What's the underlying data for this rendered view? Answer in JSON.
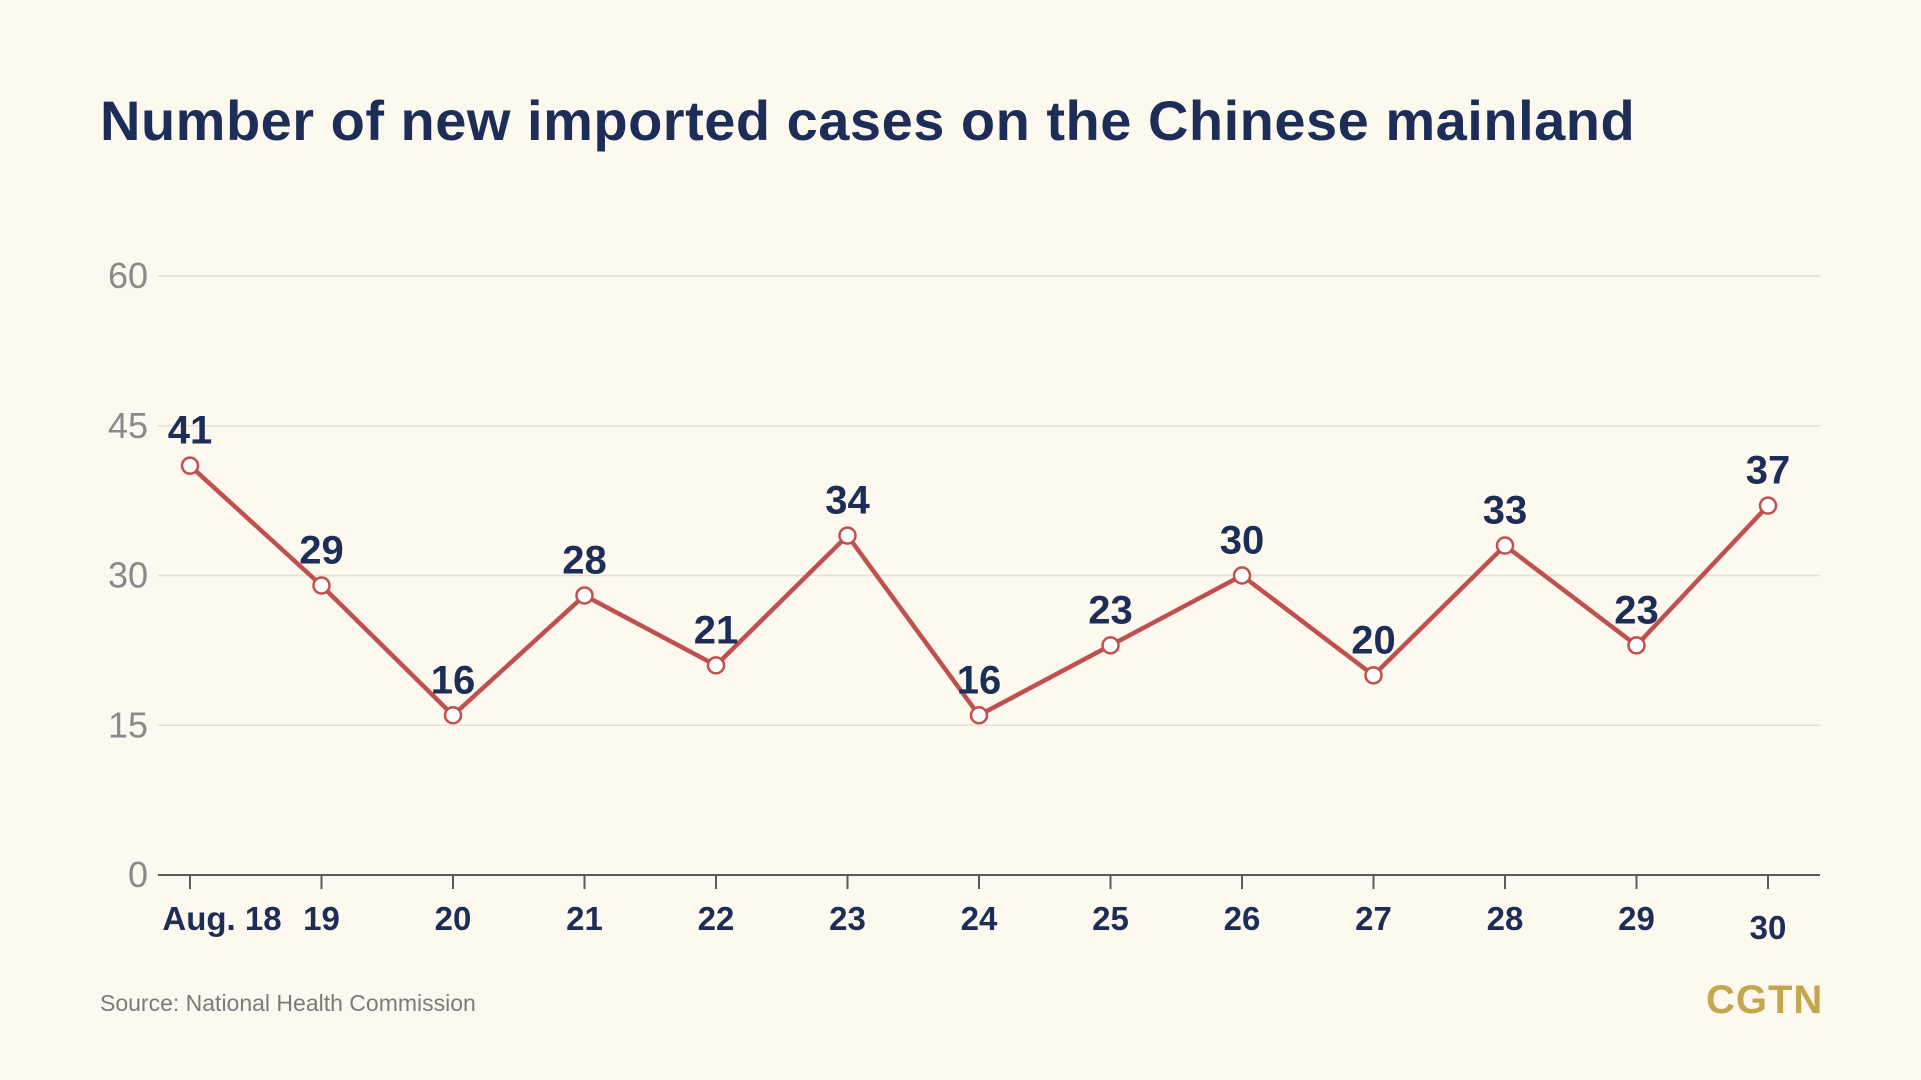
{
  "title": "Number of new imported cases on the Chinese mainland",
  "source": "Source: National Health Commission",
  "logo": "CGTN",
  "colors": {
    "background": "#fdf9ef",
    "line": "#c0504d",
    "title": "#1c2e57",
    "axis_text": "#8a8a8a",
    "grid": "#e4e0d4",
    "logo": "#c6a64d"
  },
  "chart_data": {
    "type": "line",
    "title": "Number of new imported cases on the Chinese mainland",
    "xlabel": "",
    "ylabel": "",
    "categories": [
      "Aug. 18",
      "19",
      "20",
      "21",
      "22",
      "23",
      "24",
      "25",
      "26",
      "27",
      "28",
      "29",
      "30"
    ],
    "series": [
      {
        "values": [
          41,
          29,
          16,
          28,
          21,
          34,
          16,
          23,
          30,
          20,
          33,
          23,
          37
        ]
      }
    ],
    "data_labels": [
      "41",
      "29",
      "16",
      "28",
      "21",
      "34",
      "16",
      "23",
      "30",
      "20",
      "33",
      "23",
      "37"
    ],
    "y_ticks": [
      0,
      15,
      30,
      45,
      60
    ],
    "y_tick_labels": [
      "0",
      "15",
      "30",
      "45",
      "60"
    ],
    "ylim": [
      0,
      60
    ],
    "grid": true,
    "legend": "none"
  }
}
